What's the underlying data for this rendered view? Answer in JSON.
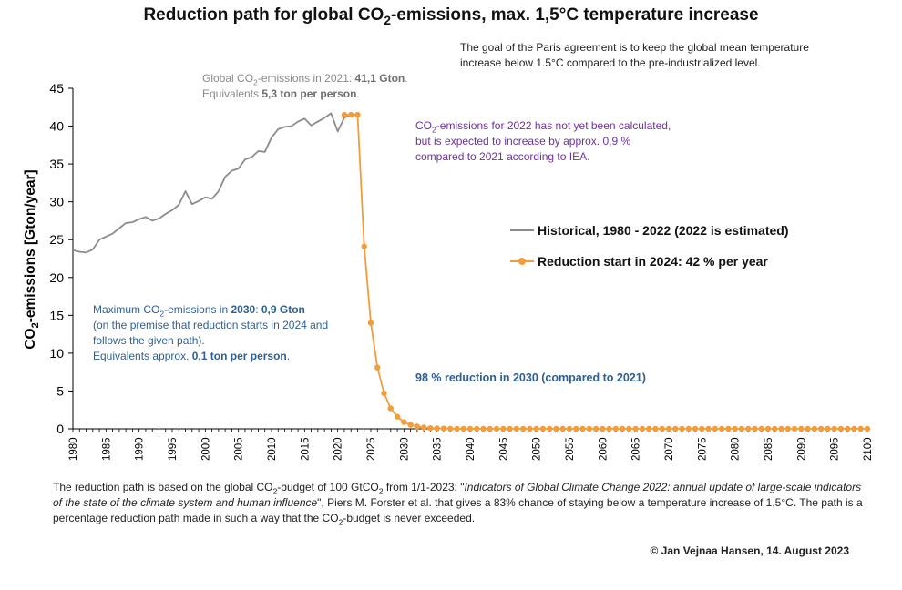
{
  "title": "Reduction path for global CO2-emissions, max. 1,5°C temperature increase",
  "title_parts": {
    "pre": "Reduction path for global CO",
    "sub": "2",
    "post": "-emissions, max. 1,5°C temperature increase"
  },
  "paris_note": "The goal of the Paris agreement is to keep the global mean temperature increase below 1.5°C compared to the pre-industrialized level.",
  "hist_note": {
    "l1_pre": "Global CO",
    "l1_sub": "2",
    "l1_mid": "-emissions in 2021: ",
    "l1_val": "41,1 Gton",
    "l1_end": ".",
    "l2_pre": "Equivalents ",
    "l2_val": "5,3 ton per person",
    "l2_end": "."
  },
  "est_note": {
    "pre": "CO",
    "sub": "2",
    "post": "-emissions for 2022 has not yet been calculated, but is expected to increase by approx. 0,9 % compared to 2021 according to IEA."
  },
  "max_note": {
    "l1_pre": "Maximum CO",
    "l1_sub": "2",
    "l1_mid": "-emissions in ",
    "l1_year": "2030",
    "l1_colon": ": ",
    "l1_val": "0,9 Gton",
    "l2": "(on the premise that reduction starts in 2024 and follows the given path).",
    "l3_pre": "Equivalents approx. ",
    "l3_val": "0,1 ton per person",
    "l3_end": "."
  },
  "reduction_note": "98 % reduction in 2030 (compared to 2021)",
  "footer": {
    "p1": "The reduction path is based on the global CO",
    "p1_sub": "2",
    "p2": "-budget of 100 GtCO",
    "p2_sub": "2",
    "p3": " from 1/1-2023: \"",
    "p4_italic": "Indicators of Global Climate Change 2022: annual update of large-scale indicators of the state of the climate system and human influence",
    "p5": "\", Piers M. Forster et al. that gives a 83% chance of staying below a temperature increase of 1,5°C. The path is a percentage reduction path made in such a way that the CO",
    "p5_sub": "2",
    "p6": "-budget is never exceeded."
  },
  "credit": "© Jan Vejnaa Hansen, 14. August 2023",
  "colors": {
    "historical": "#8c8c8c",
    "reduction": "#f39c3a",
    "axis": "#000000",
    "note_purple": "#7030a0",
    "note_blue": "#2e5f94"
  },
  "chart_data": {
    "type": "line",
    "title": "Reduction path for global CO2-emissions, max. 1,5°C temperature increase",
    "xlabel": "",
    "ylabel": "CO2-emissions [Gton/year]",
    "ylabel_parts": {
      "pre": "CO",
      "sub": "2",
      "post": "-emissions [Gton/year]"
    },
    "xlim": [
      1980,
      2100
    ],
    "ylim": [
      0,
      45
    ],
    "yticks": [
      0,
      5,
      10,
      15,
      20,
      25,
      30,
      35,
      40,
      45
    ],
    "xticks": [
      1980,
      1985,
      1990,
      1995,
      2000,
      2005,
      2010,
      2015,
      2020,
      2025,
      2030,
      2035,
      2040,
      2045,
      2050,
      2055,
      2060,
      2065,
      2070,
      2075,
      2080,
      2085,
      2090,
      2095,
      2100
    ],
    "grid": false,
    "legend_position": "right-middle",
    "series": [
      {
        "name": "Historical, 1980 - 2022 (2022 is estimated)",
        "color": "#8c8c8c",
        "x": [
          1980,
          1981,
          1982,
          1983,
          1984,
          1985,
          1986,
          1987,
          1988,
          1989,
          1990,
          1991,
          1992,
          1993,
          1994,
          1995,
          1996,
          1997,
          1998,
          1999,
          2000,
          2001,
          2002,
          2003,
          2004,
          2005,
          2006,
          2007,
          2008,
          2009,
          2010,
          2011,
          2012,
          2013,
          2014,
          2015,
          2016,
          2017,
          2018,
          2019,
          2020,
          2021,
          2022
        ],
        "y": [
          23.6,
          23.4,
          23.3,
          23.7,
          25.0,
          25.4,
          25.8,
          26.5,
          27.2,
          27.3,
          27.7,
          28.0,
          27.5,
          27.8,
          28.4,
          28.9,
          29.6,
          31.4,
          29.7,
          30.1,
          30.6,
          30.4,
          31.4,
          33.3,
          34.1,
          34.4,
          35.6,
          35.9,
          36.7,
          36.6,
          38.5,
          39.6,
          39.9,
          40.0,
          40.6,
          41.0,
          40.1,
          40.6,
          41.1,
          41.7,
          39.3,
          41.1,
          41.5
        ]
      },
      {
        "name": "Reduction start in 2024: 42 % per year",
        "color": "#f39c3a",
        "markers": true,
        "x": [
          2021,
          2022,
          2023,
          2024,
          2025,
          2026,
          2027,
          2028,
          2029,
          2030,
          2031,
          2032,
          2033,
          2034,
          2035,
          2036,
          2037,
          2038,
          2039,
          2040,
          2041,
          2042,
          2043,
          2044,
          2045,
          2046,
          2047,
          2048,
          2049,
          2050,
          2051,
          2052,
          2053,
          2054,
          2055,
          2056,
          2057,
          2058,
          2059,
          2060,
          2061,
          2062,
          2063,
          2064,
          2065,
          2066,
          2067,
          2068,
          2069,
          2070,
          2071,
          2072,
          2073,
          2074,
          2075,
          2076,
          2077,
          2078,
          2079,
          2080,
          2081,
          2082,
          2083,
          2084,
          2085,
          2086,
          2087,
          2088,
          2089,
          2090,
          2091,
          2092,
          2093,
          2094,
          2095,
          2096,
          2097,
          2098,
          2099,
          2100
        ],
        "y": [
          41.5,
          41.5,
          41.5,
          24.1,
          14.0,
          8.1,
          4.7,
          2.7,
          1.6,
          0.9,
          0.53,
          0.31,
          0.18,
          0.1,
          0.06,
          0.04,
          0.02,
          0.01,
          0.01,
          0.0,
          0.0,
          0.0,
          0.0,
          0.0,
          0.0,
          0.0,
          0.0,
          0.0,
          0.0,
          0.0,
          0.0,
          0.0,
          0.0,
          0.0,
          0.0,
          0.0,
          0.0,
          0.0,
          0.0,
          0.0,
          0.0,
          0.0,
          0.0,
          0.0,
          0.0,
          0.0,
          0.0,
          0.0,
          0.0,
          0.0,
          0.0,
          0.0,
          0.0,
          0.0,
          0.0,
          0.0,
          0.0,
          0.0,
          0.0,
          0.0,
          0.0,
          0.0,
          0.0,
          0.0,
          0.0,
          0.0,
          0.0,
          0.0,
          0.0,
          0.0,
          0.0,
          0.0,
          0.0,
          0.0,
          0.0,
          0.0,
          0.0,
          0.0,
          0.0,
          0.0
        ]
      }
    ]
  }
}
